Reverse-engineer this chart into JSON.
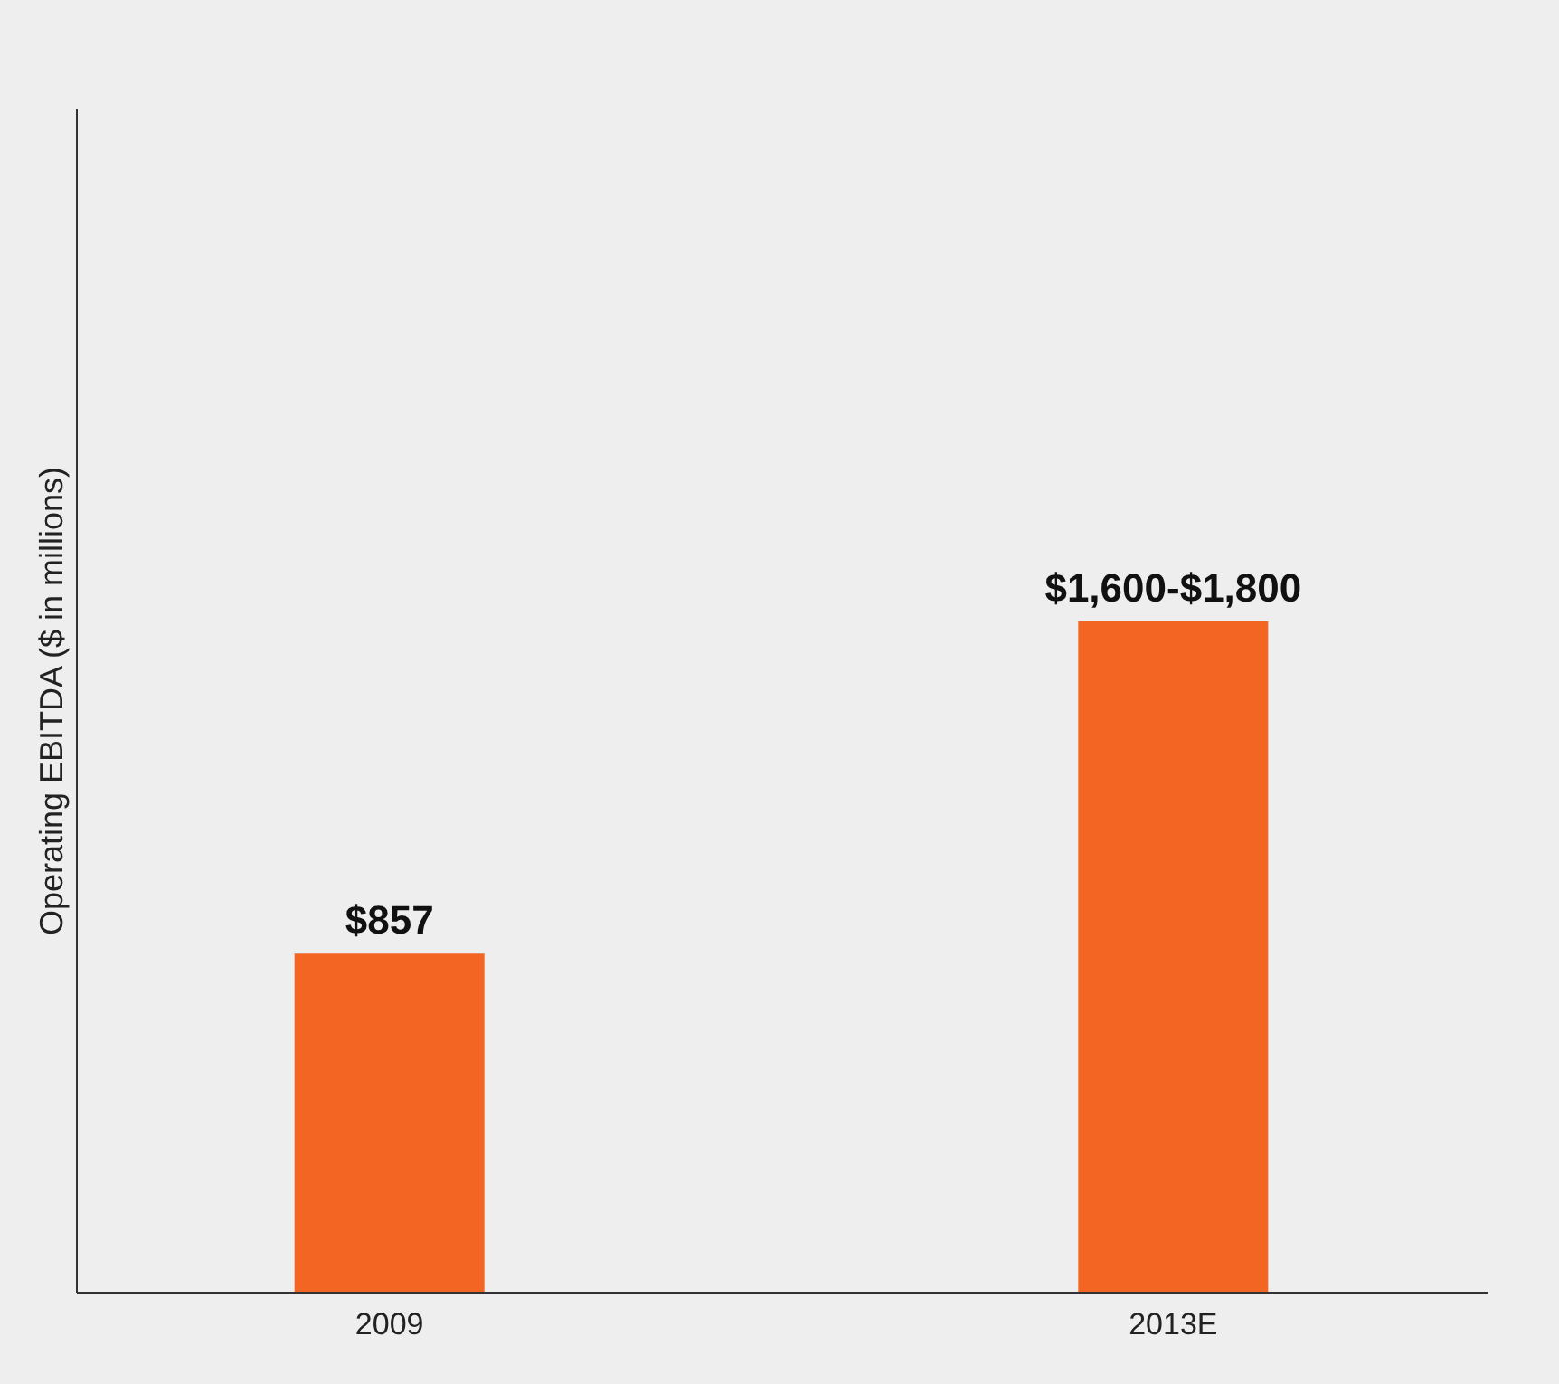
{
  "chart_data": {
    "type": "bar",
    "ylabel": "Operating EBITDA  ($ in millions)",
    "categories": [
      "2009",
      "2013E"
    ],
    "values": [
      857,
      1700
    ],
    "value_labels": [
      "$857",
      "$1,600-$1,800"
    ],
    "color": "#f26522",
    "ylim": [
      0,
      3000
    ],
    "tick_labels": "x",
    "grid": false
  }
}
